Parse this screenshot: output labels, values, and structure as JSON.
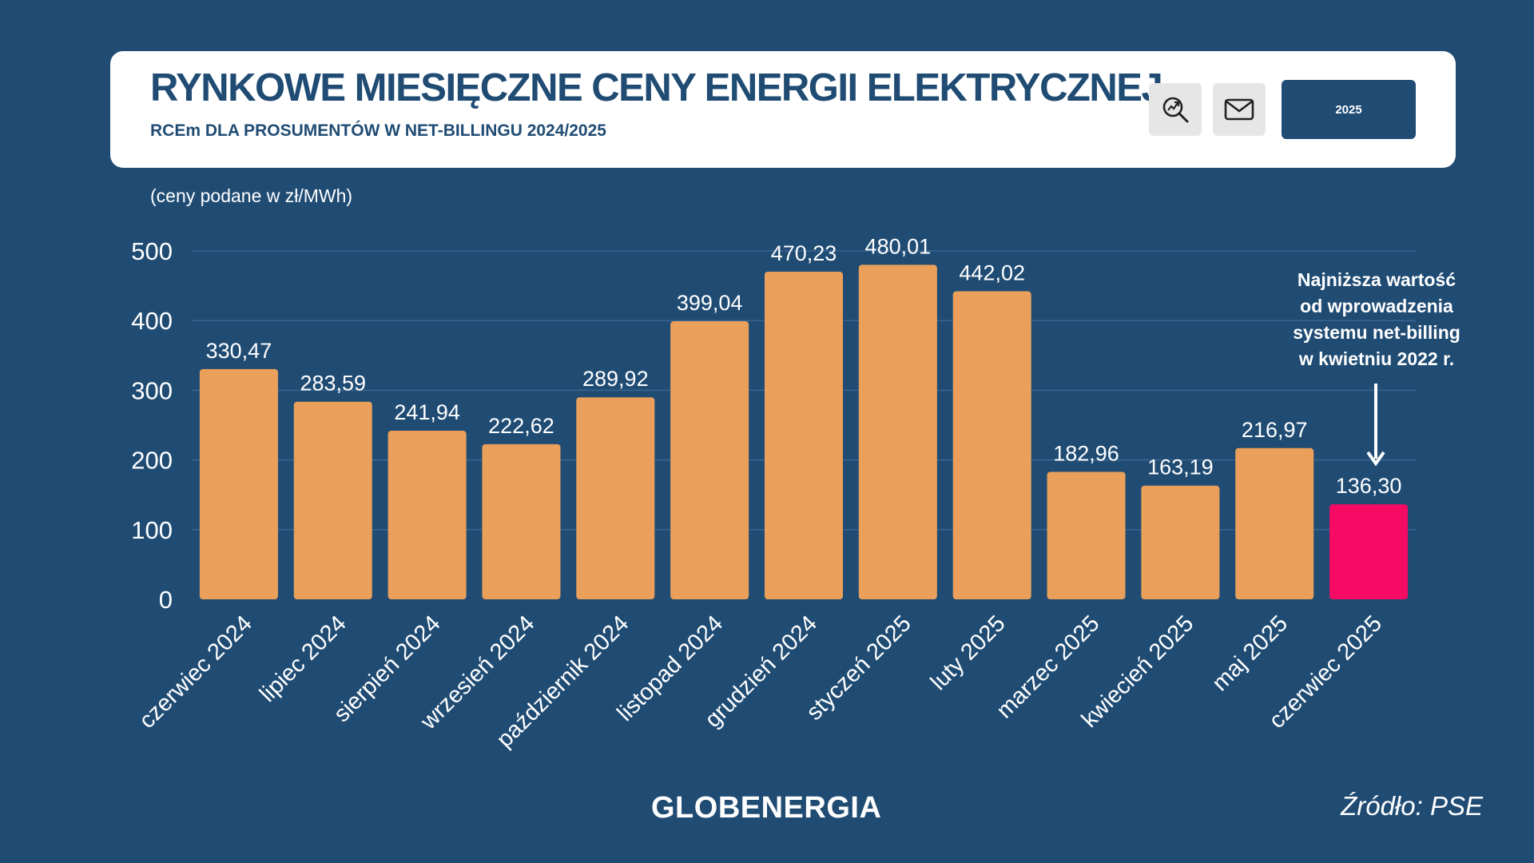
{
  "header": {
    "title": "RYNKOWE MIESIĘCZNE CENY ENERGII ELEKTRYCZNEJ",
    "subtitle": "RCEm DLA PROSUMENTÓW W NET-BILLINGU 2024/2025",
    "search_icon": "search-trend-icon",
    "mail_icon": "mail-icon",
    "year_button_label": "2025"
  },
  "unit_note": "(ceny podane w zł/MWh)",
  "annotation": {
    "lines": [
      "Najniższa wartość",
      "od wprowadzenia",
      "systemu net-billing",
      "w kwietniu 2022 r."
    ]
  },
  "footer": {
    "logo": "GLOBENERGIA",
    "source": "Źródło: PSE"
  },
  "colors": {
    "background": "#204c74",
    "bar": "#eaa05a",
    "bar_highlight": "#f50a64",
    "gridline": "#3a6590",
    "text": "#ffffff"
  },
  "chart_data": {
    "type": "bar",
    "categories": [
      "czerwiec 2024",
      "lipiec 2024",
      "sierpień 2024",
      "wrzesień 2024",
      "październik 2024",
      "listopad 2024",
      "grudzień 2024",
      "styczeń 2025",
      "luty 2025",
      "marzec 2025",
      "kwiecień 2025",
      "maj 2025",
      "czerwiec 2025"
    ],
    "values": [
      330.47,
      283.59,
      241.94,
      222.62,
      289.92,
      399.04,
      470.23,
      480.01,
      442.02,
      182.96,
      163.19,
      216.97,
      136.3
    ],
    "value_labels": [
      "330,47",
      "283,59",
      "241,94",
      "222,62",
      "289,92",
      "399,04",
      "470,23",
      "480,01",
      "442,02",
      "182,96",
      "163,19",
      "216,97",
      "136,30"
    ],
    "highlight_index": 12,
    "ylim": [
      0,
      500
    ],
    "yticks": [
      0,
      100,
      200,
      300,
      400,
      500
    ],
    "grid": true,
    "xlabel": "",
    "ylabel": ""
  }
}
